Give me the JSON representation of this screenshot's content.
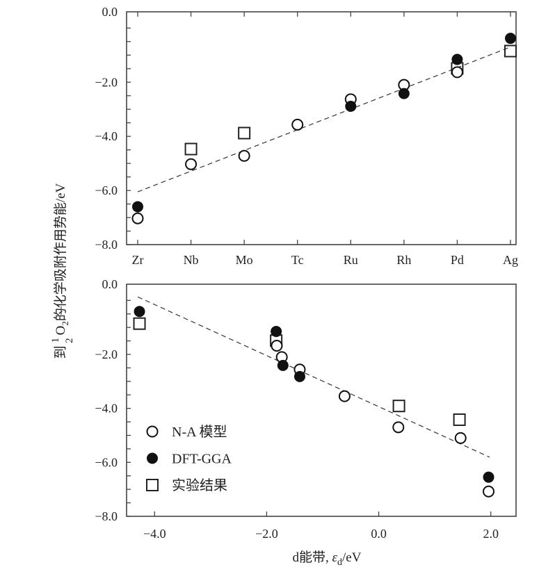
{
  "y_label": {
    "prefix": "到",
    "frac_num": "1",
    "frac_den": "2",
    "o": "O",
    "o_sub": "2",
    "rest": "的化学吸附作用势能/eV"
  },
  "legend": [
    {
      "marker": "open-circle",
      "label": "N-A 模型"
    },
    {
      "marker": "filled-circle",
      "label": "DFT-GGA"
    },
    {
      "marker": "open-square",
      "label": "实验结果"
    }
  ],
  "chart_data": [
    {
      "type": "scatter",
      "title": "",
      "xlabel": "",
      "ylabel": "到 1/2 O2的化学吸附作用势能/eV",
      "categories": [
        "Zr",
        "Nb",
        "Mo",
        "Tc",
        "Ru",
        "Rh",
        "Pd",
        "Ag"
      ],
      "ylim": [
        -8.0,
        0.6
      ],
      "y_ticks": [
        -8.0,
        -6.0,
        -4.0,
        -2.0
      ],
      "y_tick_labels": [
        "−8.0",
        "−6.0",
        "−4.0",
        "−2.0"
      ],
      "y_top_label": "0.0",
      "series": [
        {
          "name": "N-A 模型",
          "marker": "open-circle",
          "values": [
            -7.03,
            -5.03,
            -4.72,
            -3.57,
            -2.63,
            -2.1,
            -1.63,
            null
          ]
        },
        {
          "name": "DFT-GGA",
          "marker": "filled-circle",
          "values": [
            -6.6,
            null,
            null,
            null,
            -2.89,
            -2.42,
            -1.16,
            -0.38
          ]
        },
        {
          "name": "实验结果",
          "marker": "open-square",
          "values": [
            null,
            -4.47,
            -3.88,
            null,
            null,
            null,
            -1.49,
            -0.85
          ]
        }
      ],
      "trend_line": {
        "from": [
          "Zr",
          -6.05
        ],
        "to": [
          "Ag",
          -0.7
        ]
      }
    },
    {
      "type": "scatter",
      "title": "",
      "xlabel_prefix": "d能带, ",
      "xlabel_eps": "ε",
      "xlabel_sub": "d",
      "xlabel_suffix": "/eV",
      "ylabel": "到 1/2 O2的化学吸附作用势能/eV",
      "xlim": [
        -4.5,
        2.45
      ],
      "ylim": [
        -8.0,
        0.6
      ],
      "x_ticks": [
        -4.0,
        -2.0,
        0.0,
        2.0
      ],
      "x_tick_labels": [
        "−4.0",
        "−2.0",
        "0.0",
        "2.0"
      ],
      "y_ticks": [
        -8.0,
        -6.0,
        -4.0,
        -2.0
      ],
      "y_tick_labels": [
        "−8.0",
        "−6.0",
        "−4.0",
        "−2.0"
      ],
      "y_top_label": "0.0",
      "series": [
        {
          "name": "N-A 模型",
          "marker": "open-circle",
          "points": [
            [
              -1.82,
              -1.68
            ],
            [
              -1.73,
              -2.1
            ],
            [
              -1.41,
              -2.56
            ],
            [
              -0.61,
              -3.55
            ],
            [
              0.35,
              -4.7
            ],
            [
              1.46,
              -5.1
            ],
            [
              1.96,
              -7.08
            ]
          ]
        },
        {
          "name": "DFT-GGA",
          "marker": "filled-circle",
          "points": [
            [
              -4.27,
              -0.41
            ],
            [
              -1.83,
              -1.15
            ],
            [
              -1.71,
              -2.41
            ],
            [
              -1.41,
              -2.82
            ],
            [
              1.96,
              -6.55
            ]
          ]
        },
        {
          "name": "实验结果",
          "marker": "open-square",
          "points": [
            [
              -4.27,
              -0.86
            ],
            [
              -1.83,
              -1.49
            ],
            [
              0.36,
              -3.91
            ],
            [
              1.44,
              -4.42
            ]
          ]
        }
      ],
      "trend_line": {
        "from": [
          -4.3,
          0.13
        ],
        "to": [
          1.98,
          -5.81
        ]
      }
    }
  ]
}
